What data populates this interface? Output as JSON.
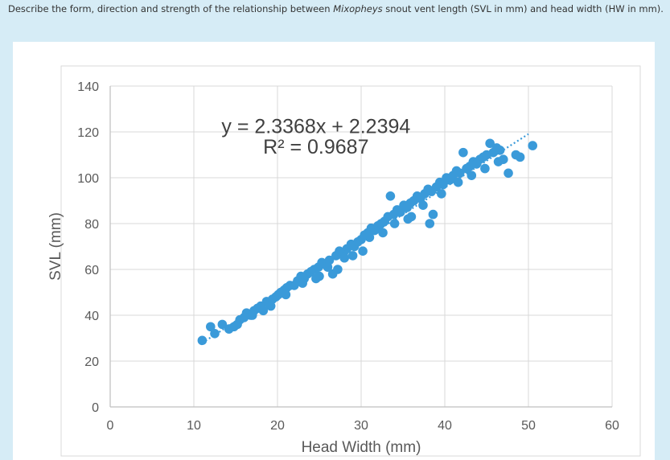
{
  "question": {
    "part1": "Describe the form, direction and strength of the relationship between ",
    "species": "Mixopheys",
    "part2": " snout vent length (SVL in mm) and head width (HW in mm)."
  },
  "chart_data": {
    "type": "scatter",
    "title": "",
    "xlabel": "Head Width (mm)",
    "ylabel": "SVL (mm)",
    "xlim": [
      0,
      60
    ],
    "ylim": [
      0,
      140
    ],
    "xticks": [
      "0",
      "10",
      "20",
      "30",
      "40",
      "50",
      "60"
    ],
    "yticks": [
      "0",
      "20",
      "40",
      "60",
      "80",
      "100",
      "120",
      "140"
    ],
    "grid": true,
    "legend": "none",
    "marker_color": "#3a9ad9",
    "trendline": {
      "type": "linear",
      "slope": 2.3368,
      "intercept": 2.2394,
      "r_squared": 0.9687,
      "x_range": [
        11,
        50
      ],
      "equation_label": "y = 2.3368x + 2.2394",
      "r2_label": "R² = 0.9687"
    },
    "points": [
      [
        11.0,
        29
      ],
      [
        12.0,
        35
      ],
      [
        12.5,
        32
      ],
      [
        13.4,
        36
      ],
      [
        14.2,
        34
      ],
      [
        14.8,
        35
      ],
      [
        15.5,
        38
      ],
      [
        16.0,
        39
      ],
      [
        16.3,
        41
      ],
      [
        16.8,
        40
      ],
      [
        17.2,
        42
      ],
      [
        17.6,
        43
      ],
      [
        18.0,
        44
      ],
      [
        18.3,
        42
      ],
      [
        18.7,
        46
      ],
      [
        19.0,
        45
      ],
      [
        19.4,
        47
      ],
      [
        19.8,
        48
      ],
      [
        20.1,
        49
      ],
      [
        20.4,
        50
      ],
      [
        20.8,
        51
      ],
      [
        21.1,
        52
      ],
      [
        21.5,
        53
      ],
      [
        22.0,
        53
      ],
      [
        22.4,
        55
      ],
      [
        22.8,
        57
      ],
      [
        23.2,
        56
      ],
      [
        23.6,
        58
      ],
      [
        24.0,
        59
      ],
      [
        24.4,
        60
      ],
      [
        24.9,
        61
      ],
      [
        25.3,
        63
      ],
      [
        25.8,
        62
      ],
      [
        26.2,
        64
      ],
      [
        26.6,
        58
      ],
      [
        27.0,
        66
      ],
      [
        27.4,
        68
      ],
      [
        27.9,
        67
      ],
      [
        28.3,
        69
      ],
      [
        28.8,
        71
      ],
      [
        29.2,
        70
      ],
      [
        29.6,
        72
      ],
      [
        30.0,
        73
      ],
      [
        30.4,
        75
      ],
      [
        30.8,
        76
      ],
      [
        31.2,
        78
      ],
      [
        31.6,
        77
      ],
      [
        32.0,
        79
      ],
      [
        32.4,
        80
      ],
      [
        32.8,
        81
      ],
      [
        33.2,
        83
      ],
      [
        33.5,
        92
      ],
      [
        33.9,
        84
      ],
      [
        34.3,
        86
      ],
      [
        34.7,
        85
      ],
      [
        35.1,
        88
      ],
      [
        35.5,
        87
      ],
      [
        35.9,
        89
      ],
      [
        36.3,
        90
      ],
      [
        36.7,
        92
      ],
      [
        37.1,
        91
      ],
      [
        37.6,
        93
      ],
      [
        38.0,
        95
      ],
      [
        38.4,
        94
      ],
      [
        38.2,
        80
      ],
      [
        38.6,
        84
      ],
      [
        39.0,
        96
      ],
      [
        39.4,
        98
      ],
      [
        39.8,
        97
      ],
      [
        40.2,
        100
      ],
      [
        40.6,
        99
      ],
      [
        41.0,
        101
      ],
      [
        41.4,
        103
      ],
      [
        41.8,
        102
      ],
      [
        42.2,
        111
      ],
      [
        42.6,
        104
      ],
      [
        43.0,
        105
      ],
      [
        43.4,
        107
      ],
      [
        43.8,
        106
      ],
      [
        44.2,
        108
      ],
      [
        44.6,
        109
      ],
      [
        45.0,
        110
      ],
      [
        45.4,
        115
      ],
      [
        45.8,
        111
      ],
      [
        46.2,
        113
      ],
      [
        46.6,
        112
      ],
      [
        47.0,
        108
      ],
      [
        47.6,
        102
      ],
      [
        48.5,
        110
      ],
      [
        49.0,
        109
      ],
      [
        50.5,
        114
      ],
      [
        30.2,
        68
      ],
      [
        28.0,
        65
      ],
      [
        29.0,
        66
      ],
      [
        31.0,
        74
      ],
      [
        32.6,
        76
      ],
      [
        27.2,
        60
      ],
      [
        25.0,
        57
      ],
      [
        23.0,
        54
      ],
      [
        21.0,
        49
      ],
      [
        19.2,
        44
      ],
      [
        17.0,
        40
      ],
      [
        15.2,
        36
      ],
      [
        36.0,
        83
      ],
      [
        37.4,
        88
      ],
      [
        39.6,
        93
      ],
      [
        41.6,
        98
      ],
      [
        43.2,
        101
      ],
      [
        44.8,
        104
      ],
      [
        46.4,
        107
      ],
      [
        34.0,
        80
      ],
      [
        35.6,
        82
      ],
      [
        24.6,
        56
      ],
      [
        26.0,
        61
      ]
    ]
  }
}
